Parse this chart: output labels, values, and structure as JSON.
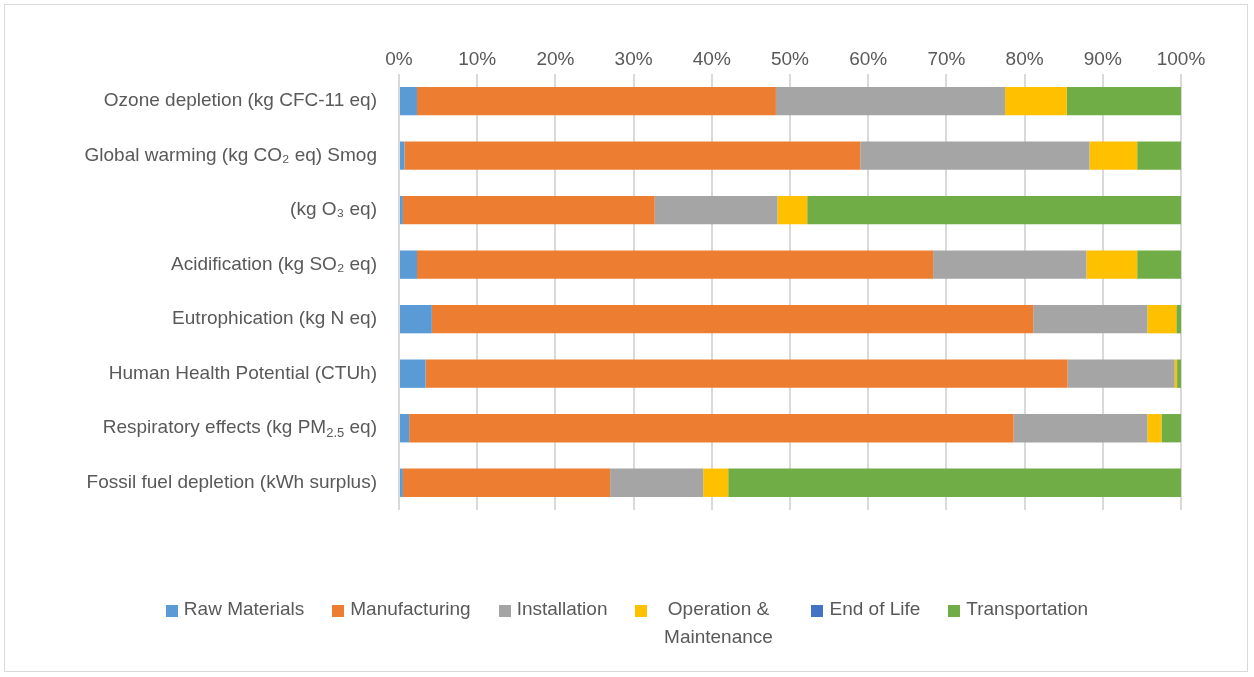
{
  "chart_data": {
    "type": "bar",
    "orientation": "horizontal",
    "stacked": true,
    "categories": [
      "Ozone depletion (kg CFC-11 eq)",
      "Global warming (kg CO₂ eq) Smog",
      "(kg O₃ eq)",
      "Acidification (kg SO₂ eq)",
      "Eutrophication (kg N eq)",
      "Human Health Potential (CTUh)",
      "Respiratory effects (kg PM$_{2.5}$ eq)",
      "Fossil fuel depletion (kWh surplus)"
    ],
    "series": [
      {
        "name": "Raw Materials",
        "color": "#5b9bd5",
        "values": [
          2.3,
          0.7,
          0.5,
          2.3,
          4.2,
          3.4,
          1.3,
          0.5
        ]
      },
      {
        "name": "Manufacturing",
        "color": "#ed7d31",
        "values": [
          45.9,
          58.3,
          32.2,
          66.0,
          76.9,
          82.1,
          77.3,
          26.5
        ]
      },
      {
        "name": "Installation",
        "color": "#a5a5a5",
        "values": [
          29.3,
          29.3,
          15.7,
          19.6,
          14.6,
          13.7,
          17.1,
          11.9
        ]
      },
      {
        "name": "Operation & Maintenance",
        "color": "#ffc000",
        "values": [
          7.9,
          6.1,
          3.8,
          6.5,
          3.7,
          0.3,
          1.8,
          3.2
        ]
      },
      {
        "name": "End of Life",
        "color": "#4472c4",
        "values": [
          0,
          0,
          0,
          0,
          0,
          0,
          0,
          0
        ]
      },
      {
        "name": "Transportation",
        "color": "#70ad47",
        "values": [
          14.6,
          5.6,
          47.8,
          5.6,
          0.6,
          0.5,
          2.5,
          57.9
        ]
      }
    ],
    "xlim": [
      0,
      100
    ],
    "xticks": [
      {
        "value": 0,
        "label": "0%"
      },
      {
        "value": 10,
        "label": "10%"
      },
      {
        "value": 20,
        "label": "20%"
      },
      {
        "value": 30,
        "label": "30%"
      },
      {
        "value": 40,
        "label": "40%"
      },
      {
        "value": 50,
        "label": "50%"
      },
      {
        "value": 60,
        "label": "60%"
      },
      {
        "value": 70,
        "label": "70%"
      },
      {
        "value": 80,
        "label": "80%"
      },
      {
        "value": 90,
        "label": "90%"
      },
      {
        "value": 100,
        "label": "100%"
      }
    ],
    "grid": "x",
    "legend": "bottom"
  }
}
